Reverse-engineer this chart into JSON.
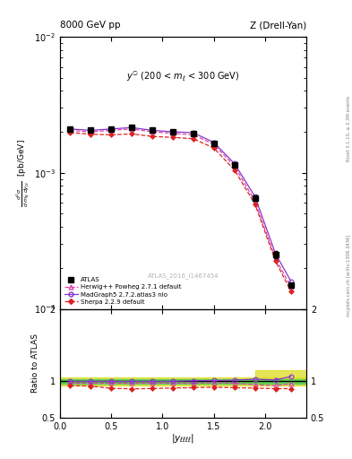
{
  "title_left": "8000 GeV pp",
  "title_right": "Z (Drell-Yan)",
  "annotation": "y$^{\\emptyset}$ (200 < $m_{\\ell}$ < 300 GeV)",
  "watermark": "ATLAS_2016_I1467454",
  "right_label": "mcplots.cern.ch [arXiv:1306.3436]",
  "rivet_label": "Rivet 3.1.10, ≥ 2.3M events",
  "ylabel_ratio": "Ratio to ATLAS",
  "ylim_main_log": [
    -4,
    -2
  ],
  "ylim_ratio": [
    0.5,
    2.0
  ],
  "xlim": [
    0.0,
    2.4
  ],
  "x_data": [
    0.1,
    0.3,
    0.5,
    0.7,
    0.9,
    1.1,
    1.3,
    1.5,
    1.7,
    1.9,
    2.1,
    2.25
  ],
  "atlas_y": [
    0.0021,
    0.00205,
    0.0021,
    0.00215,
    0.00205,
    0.002,
    0.00195,
    0.00165,
    0.00115,
    0.00065,
    0.00025,
    0.00015
  ],
  "atlas_yerr": [
    4e-05,
    4e-05,
    4e-05,
    4e-05,
    4e-05,
    4e-05,
    4e-05,
    4e-05,
    4e-05,
    3e-05,
    1.5e-05,
    1.5e-06
  ],
  "herwig_y": [
    0.00205,
    0.002,
    0.00205,
    0.0021,
    0.002,
    0.00195,
    0.0019,
    0.00162,
    0.00112,
    0.00062,
    0.000235,
    0.000145
  ],
  "madgraph_y": [
    0.0021,
    0.00205,
    0.0021,
    0.00215,
    0.00205,
    0.002,
    0.00197,
    0.00167,
    0.00117,
    0.00067,
    0.000255,
    0.00016
  ],
  "sherpa_y": [
    0.00198,
    0.00192,
    0.0019,
    0.00193,
    0.00185,
    0.00182,
    0.00178,
    0.00152,
    0.00105,
    0.00059,
    0.000225,
    0.000135
  ],
  "herwig_ratio": [
    0.975,
    0.975,
    0.975,
    0.975,
    0.975,
    0.975,
    0.974,
    0.982,
    0.974,
    0.954,
    0.94,
    0.967
  ],
  "madgraph_ratio": [
    1.0,
    1.0,
    1.0,
    1.0,
    1.0,
    1.0,
    1.01,
    1.012,
    1.017,
    1.031,
    1.02,
    1.067
  ],
  "sherpa_ratio": [
    0.942,
    0.936,
    0.905,
    0.898,
    0.902,
    0.91,
    0.913,
    0.921,
    0.913,
    0.908,
    0.9,
    0.9
  ],
  "band_green_low": 0.97,
  "band_green_high": 1.03,
  "band_yellow_low": 0.94,
  "band_yellow_high": 1.06,
  "herwig_color": "#dd44aa",
  "madgraph_color": "#8833cc",
  "sherpa_color": "#dd2222",
  "atlas_color": "#000000",
  "green_band_color": "#55cc55",
  "yellow_band_color": "#dddd22"
}
